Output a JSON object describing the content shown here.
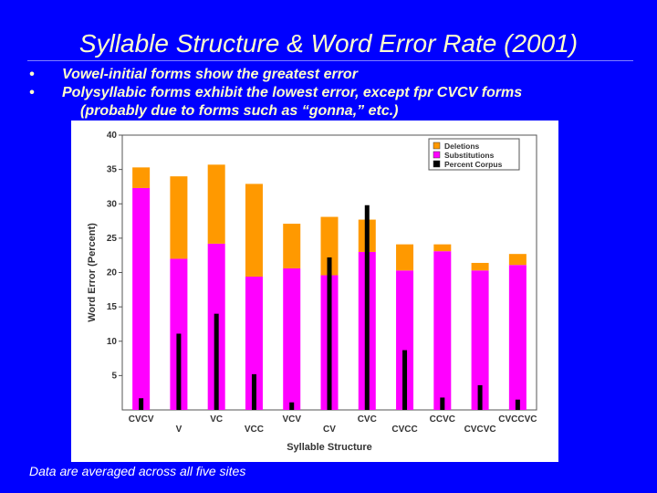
{
  "slide": {
    "title": "Syllable Structure & Word Error Rate (2001)",
    "bullets": [
      "Vowel-initial forms show the greatest error",
      "Polysyllabic forms exhibit the lowest error, except fpr CVCV forms"
    ],
    "bullet_continuation": "(probably due to forms such as “gonna,” etc.)",
    "bullet_symbol": "•",
    "footnote": "Data are averaged across all five sites"
  },
  "chart_data": {
    "type": "bar",
    "title": "",
    "xlabel": "Syllable Structure",
    "ylabel": "Word Error (Percent)",
    "ylim": [
      0,
      40
    ],
    "yticks": [
      5,
      10,
      15,
      20,
      25,
      30,
      35,
      40
    ],
    "grid": false,
    "legend_position": "top-right",
    "categories": [
      "CVCV",
      "V",
      "VC",
      "VCC",
      "VCV",
      "CV",
      "CVC",
      "CVCC",
      "CCVC",
      "CVCVC",
      "CVCCVC"
    ],
    "series": [
      {
        "name": "Deletions",
        "color": "#ff9900",
        "values": [
          3.0,
          12.0,
          11.5,
          13.5,
          6.5,
          8.5,
          4.7,
          3.8,
          1.0,
          1.1,
          1.6
        ]
      },
      {
        "name": "Substitutions",
        "color": "#ff00ff",
        "values": [
          32.3,
          22.0,
          24.2,
          19.4,
          20.6,
          19.6,
          23.0,
          20.3,
          23.1,
          20.3,
          21.1
        ]
      },
      {
        "name": "Percent Corpus",
        "color": "#000000",
        "values": [
          1.7,
          11.1,
          14.0,
          5.2,
          1.1,
          22.2,
          29.8,
          8.7,
          1.8,
          3.6,
          1.5
        ]
      }
    ]
  }
}
